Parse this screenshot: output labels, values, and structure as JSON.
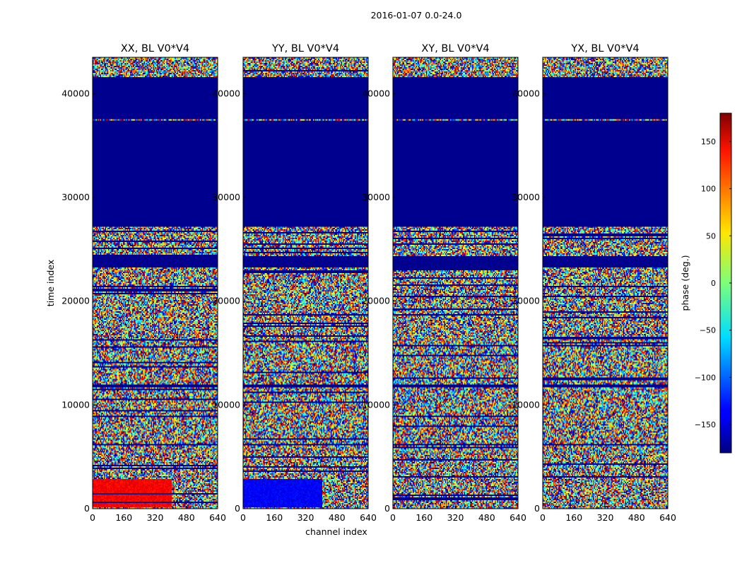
{
  "chart_data": {
    "type": "heatmap",
    "suptitle": "2016-01-07 0.0-24.0",
    "xlabel": "channel index",
    "ylabel": "time index",
    "xlim": [
      0,
      640
    ],
    "ylim": [
      0,
      43500
    ],
    "xticks": [
      0,
      160,
      320,
      480,
      640
    ],
    "yticks": [
      0,
      10000,
      20000,
      30000,
      40000
    ],
    "panels": [
      {
        "key": "XX",
        "title": "XX, BL V0*V4"
      },
      {
        "key": "YY",
        "title": "YY, BL V0*V4"
      },
      {
        "key": "XY",
        "title": "XY, BL V0*V4"
      },
      {
        "key": "YX",
        "title": "YX, BL V0*V4"
      }
    ],
    "colorbar": {
      "label": "phase (deg.)",
      "range": [
        -180,
        180
      ],
      "ticks": [
        -150,
        -100,
        -50,
        0,
        50,
        100,
        150
      ],
      "colormap": "jet"
    },
    "flagged_time_ranges": [
      [
        37500,
        41600
      ],
      [
        27200,
        37400
      ],
      [
        23300,
        24300
      ],
      [
        11700,
        12000
      ],
      [
        6100,
        6300
      ]
    ]
  },
  "colors": {
    "flag_value": "#00008f",
    "axes_edge": "#000000",
    "background": "#ffffff"
  }
}
